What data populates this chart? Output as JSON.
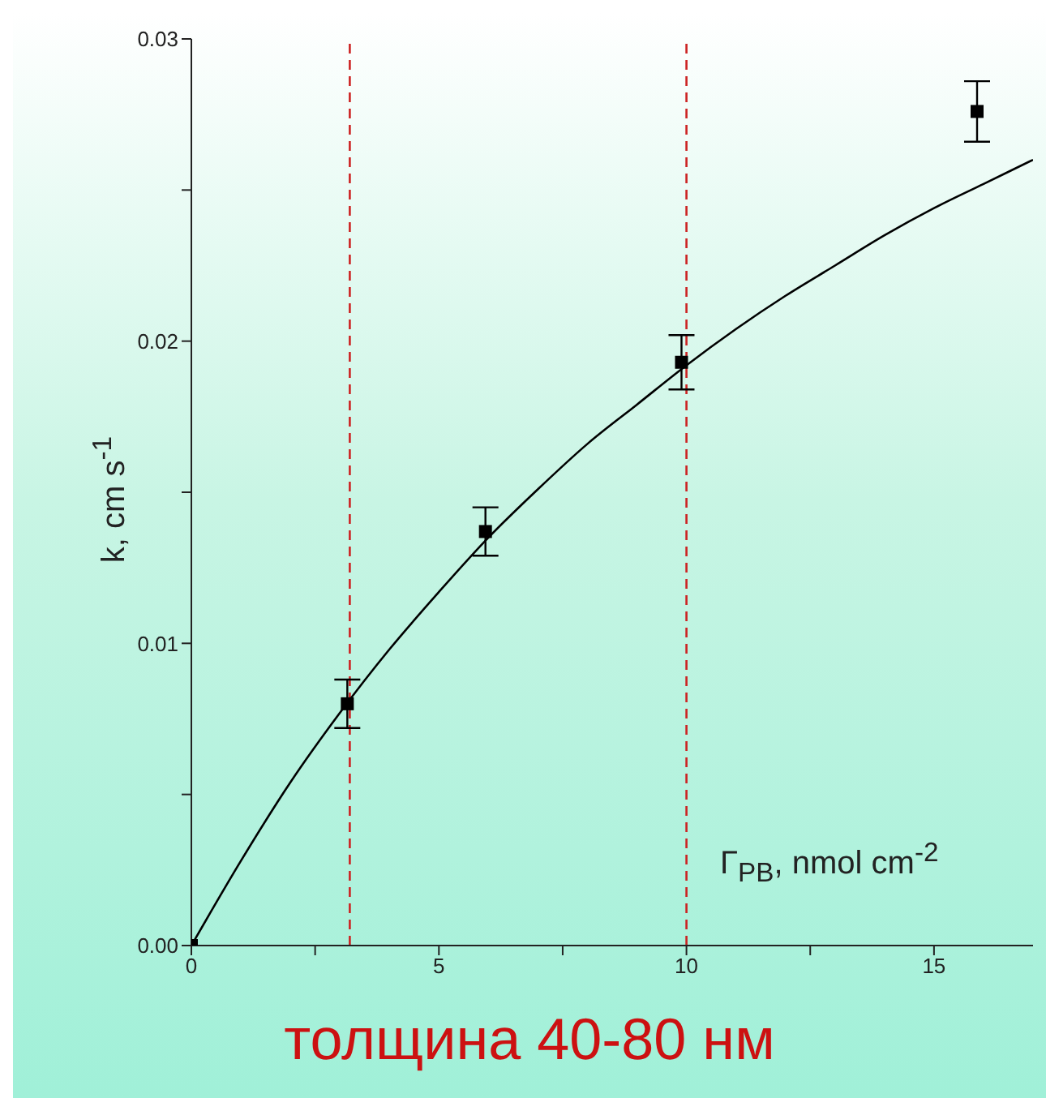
{
  "chart_data": {
    "type": "scatter",
    "xlabel": "Γ$_{PB}$, nmol cm$^{-2}$",
    "ylabel": "k, cm s$^{-1}$",
    "annotations": [
      "толщина 40-80 нм"
    ],
    "xlim": [
      0,
      17
    ],
    "xticks": [
      0,
      {
        "value": 2.5,
        "label": null
      },
      5,
      {
        "value": 7.5,
        "label": null
      },
      10,
      {
        "value": 12.5,
        "label": null
      },
      15
    ],
    "ylim": [
      0,
      0.03
    ],
    "yticks": [
      {
        "value": 0,
        "label": "0.00"
      },
      {
        "value": 0.005,
        "label": null
      },
      {
        "value": 0.01,
        "label": "0.01"
      },
      {
        "value": 0.015,
        "label": null
      },
      {
        "value": 0.02,
        "label": "0.02"
      },
      {
        "value": 0.025,
        "label": null
      },
      {
        "value": 0.03,
        "label": "0.03"
      }
    ],
    "grid": false,
    "marker": "square",
    "series": [
      {
        "color": "#000000",
        "x": [
          0,
          3.15,
          5.94,
          9.9,
          15.87
        ],
        "values": [
          0,
          0.008,
          0.0137,
          0.0193,
          0.0276
        ],
        "errors": [
          null,
          0.0008,
          0.0008,
          0.0009,
          0.001
        ]
      },
      {
        "type": "line",
        "color": "#000000",
        "marker": "none",
        "line_style": "solid",
        "x": [
          0,
          1,
          2,
          3,
          4,
          5,
          6,
          7,
          8,
          9,
          10,
          11,
          12,
          13,
          14,
          15,
          16,
          17
        ],
        "values": [
          0,
          0.0028,
          0.0054,
          0.0077,
          0.0098,
          0.0117,
          0.0135,
          0.0151,
          0.0166,
          0.0179,
          0.0192,
          0.0204,
          0.0215,
          0.0225,
          0.0235,
          0.0244,
          0.0252,
          0.026
        ]
      }
    ],
    "ref_lines": [
      {
        "axis": "x",
        "value": 3.2,
        "color": "#cc2222",
        "line_style": "dashed"
      },
      {
        "axis": "x",
        "value": 10,
        "color": "#cc2222",
        "line_style": "dashed"
      }
    ]
  }
}
